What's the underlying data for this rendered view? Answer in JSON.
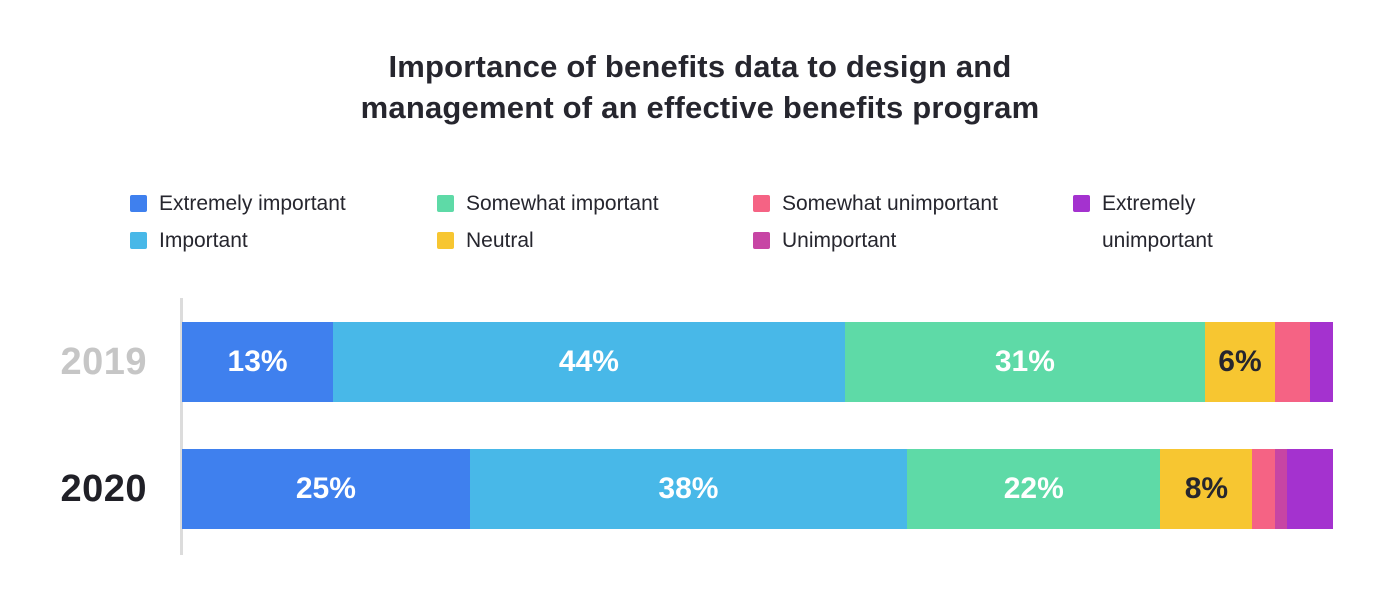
{
  "title": {
    "line1": "Importance of benefits data to design and",
    "line2": "management of an effective benefits program"
  },
  "chart_data": {
    "type": "bar",
    "orientation": "horizontal-stacked",
    "title": "Importance of benefits data to design and management of an effective benefits program",
    "categories": [
      "2019",
      "2020"
    ],
    "series": [
      {
        "name": "Extremely important",
        "slug": "extremely-important",
        "color": "#3f80ee",
        "values": [
          13,
          25
        ]
      },
      {
        "name": "Important",
        "slug": "important",
        "color": "#48b8e8",
        "values": [
          44,
          38
        ]
      },
      {
        "name": "Somewhat important",
        "slug": "somewhat-important",
        "color": "#5edaa7",
        "values": [
          31,
          22
        ]
      },
      {
        "name": "Neutral",
        "slug": "neutral",
        "color": "#f7c631",
        "values": [
          6,
          8
        ],
        "dark_label": true
      },
      {
        "name": "Somewhat unimportant",
        "slug": "somewhat-unimportant",
        "color": "#f56384",
        "values": [
          3,
          2
        ]
      },
      {
        "name": "Unimportant",
        "slug": "unimportant",
        "color": "#c745a4",
        "values": [
          0,
          1
        ]
      },
      {
        "name": "Extremely unimportant",
        "slug": "extremely-unimportant",
        "color": "#a432cf",
        "values": [
          2,
          4
        ]
      }
    ],
    "value_suffix": "%",
    "visible_bar_labels": {
      "2019": [
        "13%",
        "44%",
        "31%",
        "6%"
      ],
      "2020": [
        "25%",
        "38%",
        "22%",
        "8%"
      ]
    },
    "label_min_value": 6,
    "legend_position": "top",
    "category_label_colors": [
      "#c6c6c6",
      "#202027"
    ],
    "axis_line_color": "#dcdcdc"
  }
}
